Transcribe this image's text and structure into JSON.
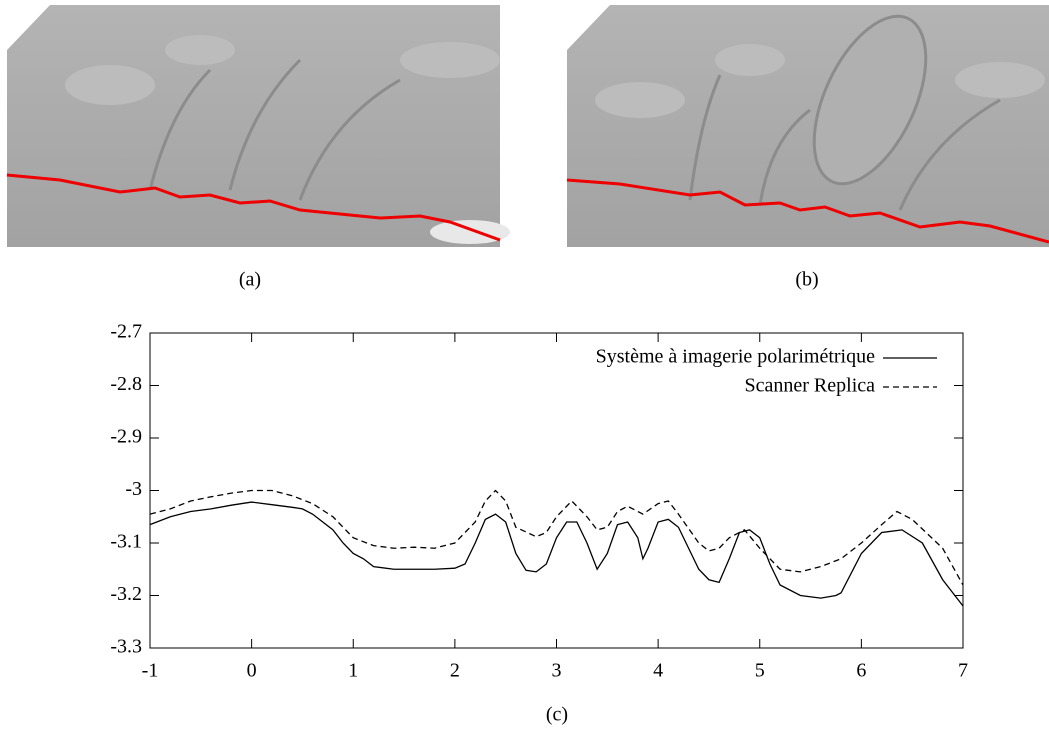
{
  "captions": [
    "(a)",
    "(b)",
    "(c)"
  ],
  "chart_data": {
    "type": "line",
    "xlim": [
      -1,
      7
    ],
    "xticks": [
      -1,
      0,
      1,
      2,
      3,
      4,
      5,
      6,
      7
    ],
    "ylim": [
      -3.3,
      -2.7
    ],
    "yticks": [
      -2.7,
      -2.8,
      -2.9,
      -3,
      -3.1,
      -3.2,
      -3.3
    ],
    "legend": "top-right",
    "series": [
      {
        "name": "Système à imagerie polarimétrique",
        "color": "#000000",
        "dash": "solid",
        "x": [
          -1,
          -0.8,
          -0.6,
          -0.4,
          -0.2,
          0,
          0.2,
          0.4,
          0.5,
          0.6,
          0.8,
          0.9,
          1.0,
          1.1,
          1.2,
          1.4,
          1.6,
          1.8,
          2.0,
          2.1,
          2.2,
          2.3,
          2.4,
          2.5,
          2.6,
          2.7,
          2.8,
          2.9,
          3.0,
          3.1,
          3.2,
          3.3,
          3.4,
          3.5,
          3.6,
          3.7,
          3.8,
          3.85,
          3.9,
          4.0,
          4.1,
          4.2,
          4.3,
          4.4,
          4.5,
          4.6,
          4.7,
          4.8,
          4.9,
          5.0,
          5.1,
          5.2,
          5.4,
          5.6,
          5.75,
          5.8,
          6.0,
          6.2,
          6.4,
          6.6,
          6.8,
          7.0
        ],
        "values": [
          -3.065,
          -3.05,
          -3.04,
          -3.035,
          -3.028,
          -3.022,
          -3.027,
          -3.032,
          -3.035,
          -3.045,
          -3.075,
          -3.1,
          -3.12,
          -3.13,
          -3.145,
          -3.15,
          -3.15,
          -3.15,
          -3.148,
          -3.14,
          -3.1,
          -3.055,
          -3.045,
          -3.06,
          -3.12,
          -3.152,
          -3.155,
          -3.14,
          -3.09,
          -3.06,
          -3.06,
          -3.1,
          -3.15,
          -3.12,
          -3.065,
          -3.06,
          -3.09,
          -3.13,
          -3.11,
          -3.06,
          -3.055,
          -3.07,
          -3.11,
          -3.15,
          -3.17,
          -3.175,
          -3.13,
          -3.08,
          -3.075,
          -3.09,
          -3.14,
          -3.18,
          -3.2,
          -3.205,
          -3.2,
          -3.195,
          -3.12,
          -3.08,
          -3.075,
          -3.1,
          -3.17,
          -3.22
        ]
      },
      {
        "name": "Scanner Replica",
        "color": "#000000",
        "dash": "dashed",
        "x": [
          -1,
          -0.8,
          -0.6,
          -0.4,
          -0.2,
          0,
          0.2,
          0.4,
          0.6,
          0.8,
          1.0,
          1.2,
          1.4,
          1.6,
          1.8,
          2.0,
          2.2,
          2.3,
          2.4,
          2.5,
          2.6,
          2.8,
          2.9,
          3.0,
          3.15,
          3.3,
          3.4,
          3.5,
          3.6,
          3.7,
          3.85,
          4.0,
          4.1,
          4.2,
          4.4,
          4.5,
          4.6,
          4.7,
          4.85,
          5.0,
          5.2,
          5.4,
          5.6,
          5.8,
          6.0,
          6.2,
          6.35,
          6.5,
          6.8,
          7.0
        ],
        "values": [
          -3.045,
          -3.035,
          -3.02,
          -3.012,
          -3.005,
          -3.0,
          -3.0,
          -3.01,
          -3.025,
          -3.05,
          -3.09,
          -3.105,
          -3.11,
          -3.108,
          -3.11,
          -3.1,
          -3.06,
          -3.02,
          -3.0,
          -3.02,
          -3.07,
          -3.088,
          -3.08,
          -3.05,
          -3.02,
          -3.05,
          -3.075,
          -3.07,
          -3.04,
          -3.03,
          -3.045,
          -3.025,
          -3.02,
          -3.045,
          -3.1,
          -3.115,
          -3.11,
          -3.09,
          -3.075,
          -3.11,
          -3.15,
          -3.155,
          -3.145,
          -3.13,
          -3.1,
          -3.065,
          -3.04,
          -3.055,
          -3.11,
          -3.18
        ]
      }
    ]
  }
}
